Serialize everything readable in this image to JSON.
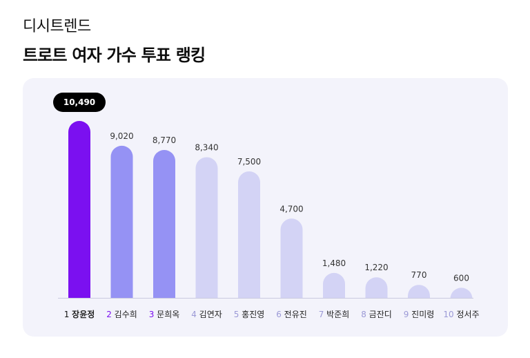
{
  "header": {
    "brand": "디시트렌드",
    "title": "트로트 여자 가수 투표 랭킹"
  },
  "colors": {
    "panel_bg": "#f3f3fb",
    "bar_first": "#7b10f0",
    "bar_second_third": "#9592f4",
    "bar_rest": "#d3d3f5",
    "badge_bg": "#000000",
    "rank_first": "#111111",
    "rank_second_third": "#7b10f0",
    "rank_rest": "#9b99d6"
  },
  "chart_data": {
    "type": "bar",
    "title": "트로트 여자 가수 투표 랭킹",
    "ranks": [
      "1",
      "2",
      "3",
      "4",
      "5",
      "6",
      "7",
      "8",
      "9",
      "10"
    ],
    "categories": [
      "장윤정",
      "김수희",
      "문희옥",
      "김연자",
      "홍진영",
      "전유진",
      "박준희",
      "금잔디",
      "진미령",
      "정서주"
    ],
    "values": [
      10490,
      9020,
      8770,
      8340,
      7500,
      4700,
      1480,
      1220,
      770,
      600
    ],
    "value_labels": [
      "10,490",
      "9,020",
      "8,770",
      "8,340",
      "7,500",
      "4,700",
      "1,480",
      "1,220",
      "770",
      "600"
    ],
    "highlight_index": 0,
    "ylim": [
      0,
      10490
    ],
    "grid": false,
    "legend": "none"
  }
}
